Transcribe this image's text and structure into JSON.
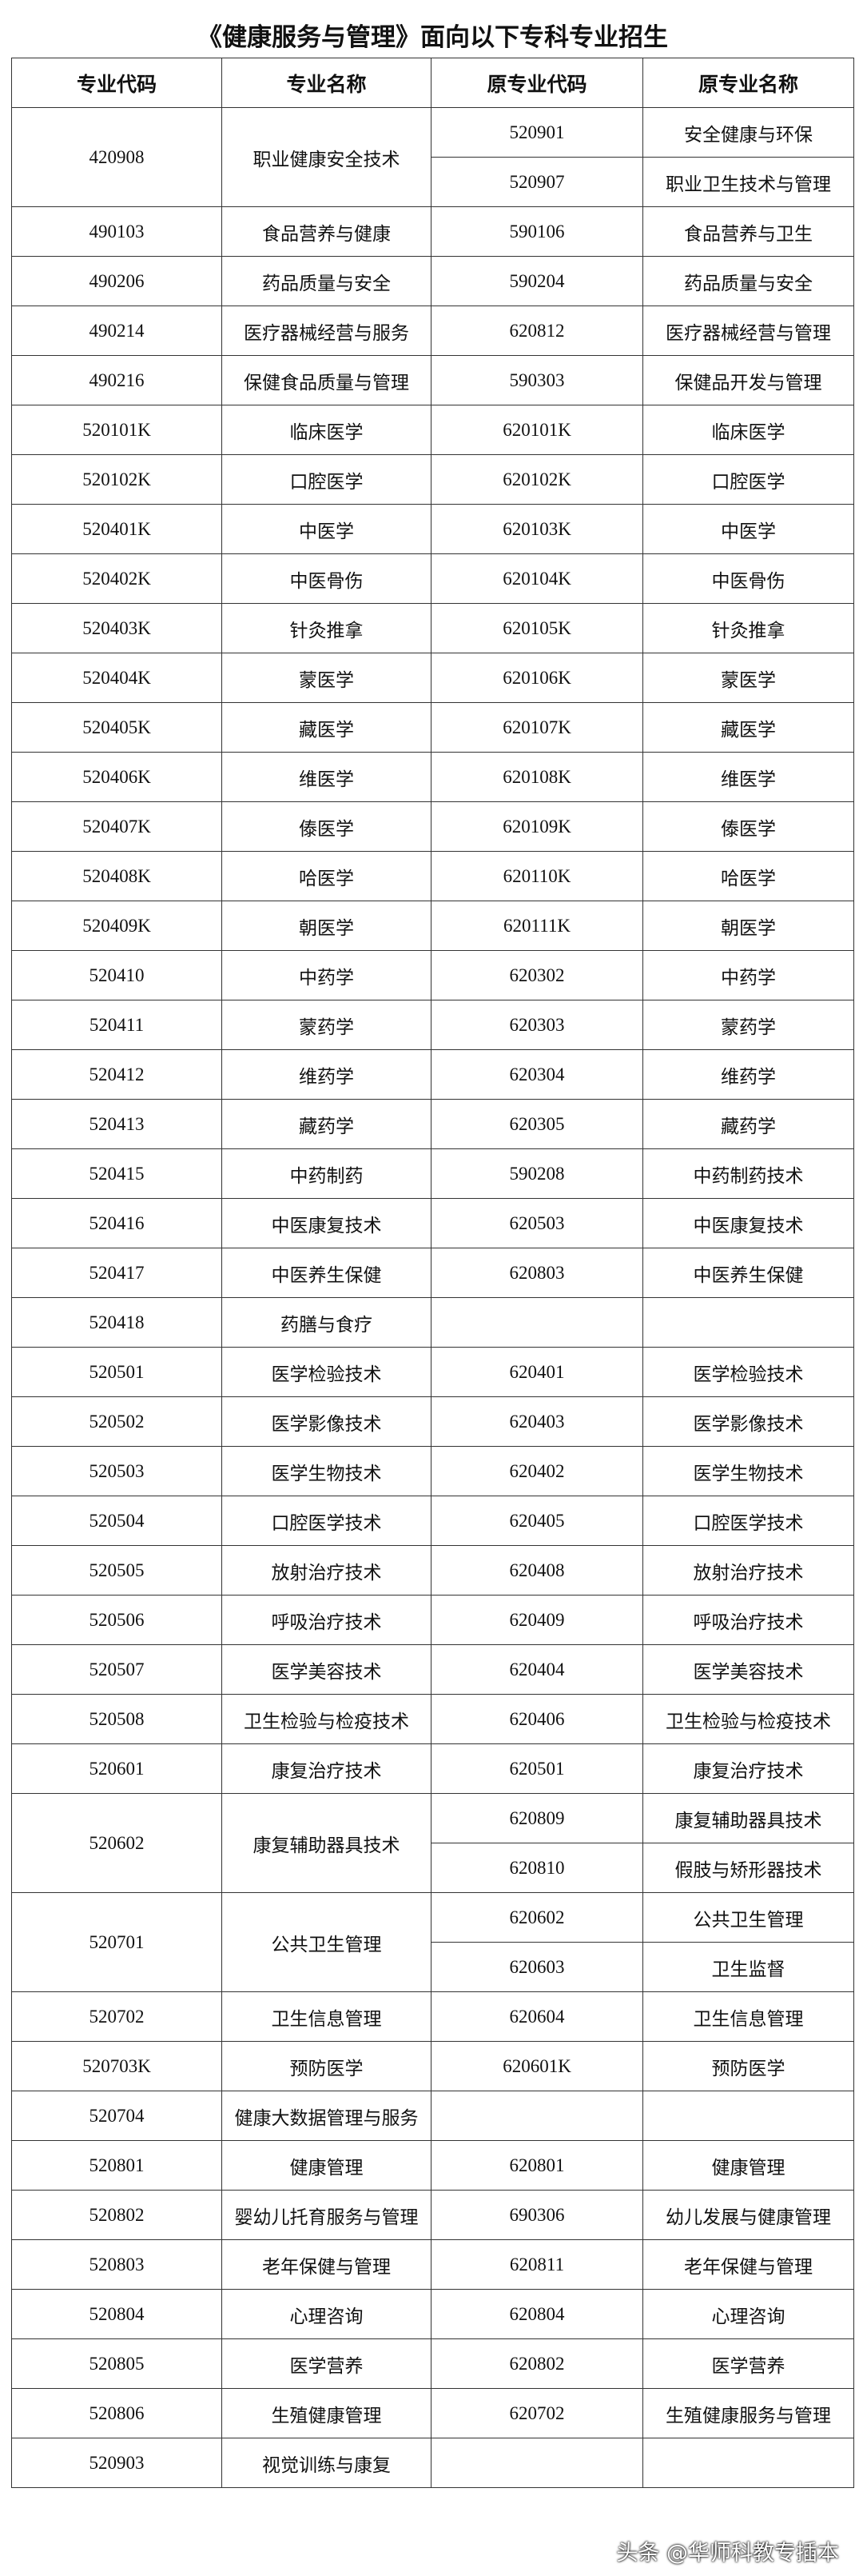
{
  "table": {
    "title": "《健康服务与管理》面向以下专科专业招生",
    "header": [
      "专业代码",
      "专业名称",
      "原专业代码",
      "原专业名称"
    ],
    "groups": [
      {
        "code": "420908",
        "name": "职业健康安全技术",
        "originals": [
          [
            "520901",
            "安全健康与环保"
          ],
          [
            "520907",
            "职业卫生技术与管理"
          ]
        ]
      },
      {
        "code": "490103",
        "name": "食品营养与健康",
        "originals": [
          [
            "590106",
            "食品营养与卫生"
          ]
        ]
      },
      {
        "code": "490206",
        "name": "药品质量与安全",
        "originals": [
          [
            "590204",
            "药品质量与安全"
          ]
        ]
      },
      {
        "code": "490214",
        "name": "医疗器械经营与服务",
        "originals": [
          [
            "620812",
            "医疗器械经营与管理"
          ]
        ]
      },
      {
        "code": "490216",
        "name": "保健食品质量与管理",
        "originals": [
          [
            "590303",
            "保健品开发与管理"
          ]
        ]
      },
      {
        "code": "520101K",
        "name": "临床医学",
        "originals": [
          [
            "620101K",
            "临床医学"
          ]
        ]
      },
      {
        "code": "520102K",
        "name": "口腔医学",
        "originals": [
          [
            "620102K",
            "口腔医学"
          ]
        ]
      },
      {
        "code": "520401K",
        "name": "中医学",
        "originals": [
          [
            "620103K",
            "中医学"
          ]
        ]
      },
      {
        "code": "520402K",
        "name": "中医骨伤",
        "originals": [
          [
            "620104K",
            "中医骨伤"
          ]
        ]
      },
      {
        "code": "520403K",
        "name": "针灸推拿",
        "originals": [
          [
            "620105K",
            "针灸推拿"
          ]
        ]
      },
      {
        "code": "520404K",
        "name": "蒙医学",
        "originals": [
          [
            "620106K",
            "蒙医学"
          ]
        ]
      },
      {
        "code": "520405K",
        "name": "藏医学",
        "originals": [
          [
            "620107K",
            "藏医学"
          ]
        ]
      },
      {
        "code": "520406K",
        "name": "维医学",
        "originals": [
          [
            "620108K",
            "维医学"
          ]
        ]
      },
      {
        "code": "520407K",
        "name": "傣医学",
        "originals": [
          [
            "620109K",
            "傣医学"
          ]
        ]
      },
      {
        "code": "520408K",
        "name": "哈医学",
        "originals": [
          [
            "620110K",
            "哈医学"
          ]
        ]
      },
      {
        "code": "520409K",
        "name": "朝医学",
        "originals": [
          [
            "620111K",
            "朝医学"
          ]
        ]
      },
      {
        "code": "520410",
        "name": "中药学",
        "originals": [
          [
            "620302",
            "中药学"
          ]
        ]
      },
      {
        "code": "520411",
        "name": "蒙药学",
        "originals": [
          [
            "620303",
            "蒙药学"
          ]
        ]
      },
      {
        "code": "520412",
        "name": "维药学",
        "originals": [
          [
            "620304",
            "维药学"
          ]
        ]
      },
      {
        "code": "520413",
        "name": "藏药学",
        "originals": [
          [
            "620305",
            "藏药学"
          ]
        ]
      },
      {
        "code": "520415",
        "name": "中药制药",
        "originals": [
          [
            "590208",
            "中药制药技术"
          ]
        ]
      },
      {
        "code": "520416",
        "name": "中医康复技术",
        "originals": [
          [
            "620503",
            "中医康复技术"
          ]
        ]
      },
      {
        "code": "520417",
        "name": "中医养生保健",
        "originals": [
          [
            "620803",
            "中医养生保健"
          ]
        ]
      },
      {
        "code": "520418",
        "name": "药膳与食疗",
        "originals": []
      },
      {
        "code": "520501",
        "name": "医学检验技术",
        "originals": [
          [
            "620401",
            "医学检验技术"
          ]
        ]
      },
      {
        "code": "520502",
        "name": "医学影像技术",
        "originals": [
          [
            "620403",
            "医学影像技术"
          ]
        ]
      },
      {
        "code": "520503",
        "name": "医学生物技术",
        "originals": [
          [
            "620402",
            "医学生物技术"
          ]
        ]
      },
      {
        "code": "520504",
        "name": "口腔医学技术",
        "originals": [
          [
            "620405",
            "口腔医学技术"
          ]
        ]
      },
      {
        "code": "520505",
        "name": "放射治疗技术",
        "originals": [
          [
            "620408",
            "放射治疗技术"
          ]
        ]
      },
      {
        "code": "520506",
        "name": "呼吸治疗技术",
        "originals": [
          [
            "620409",
            "呼吸治疗技术"
          ]
        ]
      },
      {
        "code": "520507",
        "name": "医学美容技术",
        "originals": [
          [
            "620404",
            "医学美容技术"
          ]
        ]
      },
      {
        "code": "520508",
        "name": "卫生检验与检疫技术",
        "originals": [
          [
            "620406",
            "卫生检验与检疫技术"
          ]
        ]
      },
      {
        "code": "520601",
        "name": "康复治疗技术",
        "originals": [
          [
            "620501",
            "康复治疗技术"
          ]
        ]
      },
      {
        "code": "520602",
        "name": "康复辅助器具技术",
        "originals": [
          [
            "620809",
            "康复辅助器具技术"
          ],
          [
            "620810",
            "假肢与矫形器技术"
          ]
        ]
      },
      {
        "code": "520701",
        "name": "公共卫生管理",
        "originals": [
          [
            "620602",
            "公共卫生管理"
          ],
          [
            "620603",
            "卫生监督"
          ]
        ]
      },
      {
        "code": "520702",
        "name": "卫生信息管理",
        "originals": [
          [
            "620604",
            "卫生信息管理"
          ]
        ]
      },
      {
        "code": "520703K",
        "name": "预防医学",
        "originals": [
          [
            "620601K",
            "预防医学"
          ]
        ]
      },
      {
        "code": "520704",
        "name": "健康大数据管理与服务",
        "originals": []
      },
      {
        "code": "520801",
        "name": "健康管理",
        "originals": [
          [
            "620801",
            "健康管理"
          ]
        ]
      },
      {
        "code": "520802",
        "name": "婴幼儿托育服务与管理",
        "originals": [
          [
            "690306",
            "幼儿发展与健康管理"
          ]
        ]
      },
      {
        "code": "520803",
        "name": "老年保健与管理",
        "originals": [
          [
            "620811",
            "老年保健与管理"
          ]
        ]
      },
      {
        "code": "520804",
        "name": "心理咨询",
        "originals": [
          [
            "620804",
            "心理咨询"
          ]
        ]
      },
      {
        "code": "520805",
        "name": "医学营养",
        "originals": [
          [
            "620802",
            "医学营养"
          ]
        ]
      },
      {
        "code": "520806",
        "name": "生殖健康管理",
        "originals": [
          [
            "620702",
            "生殖健康服务与管理"
          ]
        ]
      },
      {
        "code": "520903",
        "name": "视觉训练与康复",
        "originals": []
      }
    ]
  },
  "watermark": "头条 @华师科教专插本"
}
